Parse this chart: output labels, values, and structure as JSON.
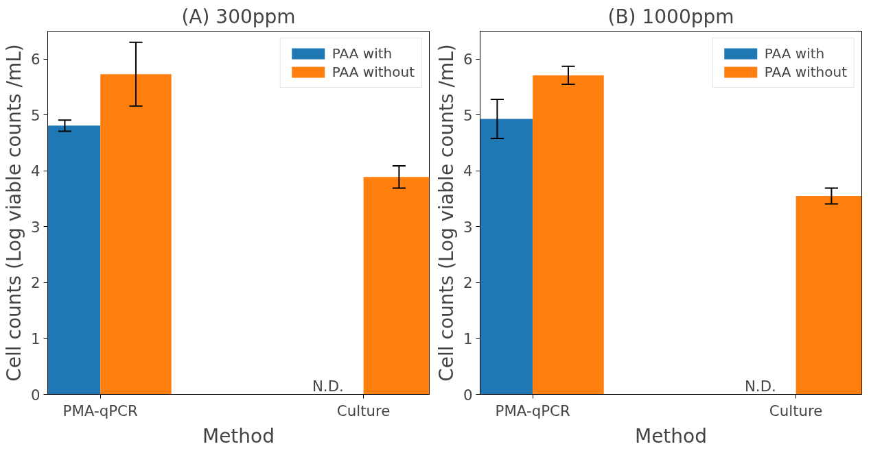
{
  "chart_data": [
    {
      "type": "bar",
      "title": "(A) 300ppm",
      "xlabel": "Method",
      "ylabel": "Cell counts (Log viable counts /mL)",
      "categories": [
        "PMA-qPCR",
        "Culture"
      ],
      "series": [
        {
          "name": "PAA with",
          "color": "#1f77b4",
          "values": [
            4.81,
            null
          ],
          "errors": [
            0.1,
            null
          ]
        },
        {
          "name": "PAA without",
          "color": "#ff7f0e",
          "values": [
            5.73,
            3.89
          ],
          "errors": [
            0.57,
            0.2
          ]
        }
      ],
      "annotations": [
        {
          "text": "N.D.",
          "x": "Culture",
          "y": 0
        }
      ],
      "ylim": [
        0,
        6.5
      ],
      "yticks": [
        0,
        1,
        2,
        3,
        4,
        5,
        6
      ],
      "legend": "top right",
      "grid": false
    },
    {
      "type": "bar",
      "title": "(B) 1000ppm",
      "xlabel": "Method",
      "ylabel": "Cell counts (Log viable counts /mL)",
      "categories": [
        "PMA-qPCR",
        "Culture"
      ],
      "series": [
        {
          "name": "PAA with",
          "color": "#1f77b4",
          "values": [
            4.93,
            null
          ],
          "errors": [
            0.35,
            null
          ]
        },
        {
          "name": "PAA without",
          "color": "#ff7f0e",
          "values": [
            5.71,
            3.55
          ],
          "errors": [
            0.16,
            0.14
          ]
        }
      ],
      "annotations": [
        {
          "text": "N.D.",
          "x": "Culture",
          "y": 0
        }
      ],
      "ylim": [
        0,
        6.5
      ],
      "yticks": [
        0,
        1,
        2,
        3,
        4,
        5,
        6
      ],
      "legend": "top right",
      "grid": false
    }
  ]
}
